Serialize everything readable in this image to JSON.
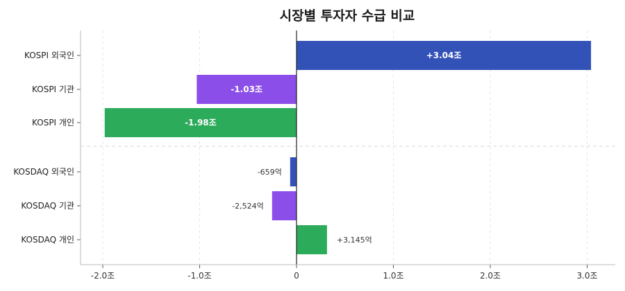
{
  "chart_data": {
    "type": "bar",
    "orientation": "horizontal",
    "title": "시장별 투자자 수급 비교",
    "xlim": [
      -2.2,
      3.3
    ],
    "xticks": [
      {
        "value": -2.0,
        "label": "-2.0조"
      },
      {
        "value": -1.0,
        "label": "-1.0조"
      },
      {
        "value": 0,
        "label": "0"
      },
      {
        "value": 1.0,
        "label": "1.0조"
      },
      {
        "value": 2.0,
        "label": "2.0조"
      },
      {
        "value": 3.0,
        "label": "3.0조"
      }
    ],
    "grid": "vertical dashed",
    "bars": [
      {
        "category": "KOSPI 외국인",
        "value": 3.04,
        "label": "+3.04조",
        "color": "#3352b8",
        "label_inside": true
      },
      {
        "category": "KOSPI 기관",
        "value": -1.03,
        "label": "-1.03조",
        "color": "#8b4ee8",
        "label_inside": true
      },
      {
        "category": "KOSPI 개인",
        "value": -1.98,
        "label": "-1.98조",
        "color": "#2cab5a",
        "label_inside": true
      },
      {
        "category": "KOSDAQ 외국인",
        "value": -0.0659,
        "label": "-659억",
        "color": "#3352b8",
        "label_inside": false
      },
      {
        "category": "KOSDAQ 기관",
        "value": -0.2524,
        "label": "-2,524억",
        "color": "#8b4ee8",
        "label_inside": false
      },
      {
        "category": "KOSDAQ 개인",
        "value": 0.3145,
        "label": "+3,145억",
        "color": "#2cab5a",
        "label_inside": false
      }
    ]
  }
}
